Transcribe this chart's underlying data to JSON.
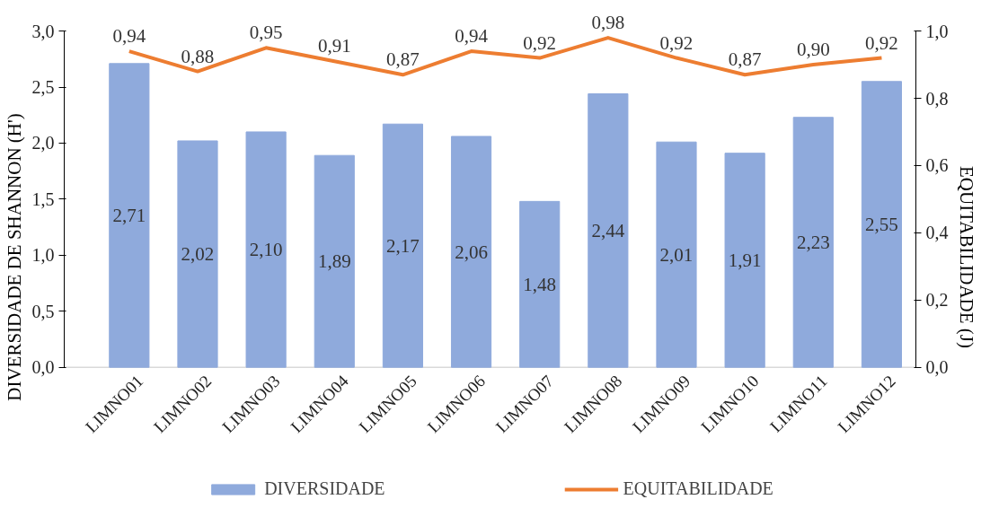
{
  "chart_data": {
    "type": "bar",
    "categories": [
      "LIMNO01",
      "LIMNO02",
      "LIMNO03",
      "LIMNO04",
      "LIMNO05",
      "LIMNO06",
      "LIMNO07",
      "LIMNO08",
      "LIMNO09",
      "LIMNO10",
      "LIMNO11",
      "LIMNO12"
    ],
    "series": [
      {
        "name": "DIVERSIDADE",
        "color": "#8faadc",
        "values": [
          2.71,
          2.02,
          2.1,
          1.89,
          2.17,
          2.06,
          1.48,
          2.44,
          2.01,
          1.91,
          2.23,
          2.55
        ],
        "value_labels": [
          "2,71",
          "2,02",
          "2,10",
          "1,89",
          "2,17",
          "2,06",
          "1,48",
          "2,44",
          "2,01",
          "1,91",
          "2,23",
          "2,55"
        ]
      },
      {
        "name": "EQUITABILIDADE",
        "type": "line",
        "axis": "y2",
        "color": "#ed7d31",
        "values": [
          0.94,
          0.88,
          0.95,
          0.91,
          0.87,
          0.94,
          0.92,
          0.98,
          0.92,
          0.87,
          0.9,
          0.92
        ],
        "value_labels": [
          "0,94",
          "0,88",
          "0,95",
          "0,91",
          "0,87",
          "0,94",
          "0,92",
          "0,98",
          "0,92",
          "0,87",
          "0,90",
          "0,92"
        ]
      }
    ],
    "ylabel": "DIVERSIDADE DE SHANNON (H')",
    "y2label": "EQUITABILIDADE (J)",
    "ylim": [
      0,
      3
    ],
    "yticks": [
      {
        "value": 0,
        "label": "0,0"
      },
      {
        "value": 0.5,
        "label": "0,5"
      },
      {
        "value": 1,
        "label": "1,0"
      },
      {
        "value": 1.5,
        "label": "1,5"
      },
      {
        "value": 2,
        "label": "2,0"
      },
      {
        "value": 2.5,
        "label": "2,5"
      },
      {
        "value": 3,
        "label": "3,0"
      }
    ],
    "y2lim": [
      0,
      1
    ],
    "y2ticks": [
      {
        "value": 0,
        "label": "0,0"
      },
      {
        "value": 0.2,
        "label": "0,2"
      },
      {
        "value": 0.4,
        "label": "0,4"
      },
      {
        "value": 0.6,
        "label": "0,6"
      },
      {
        "value": 0.8,
        "label": "0,8"
      },
      {
        "value": 1,
        "label": "1,0"
      }
    ],
    "grid": false,
    "legend": "bottom",
    "marker": "none",
    "line_style": "solid"
  }
}
